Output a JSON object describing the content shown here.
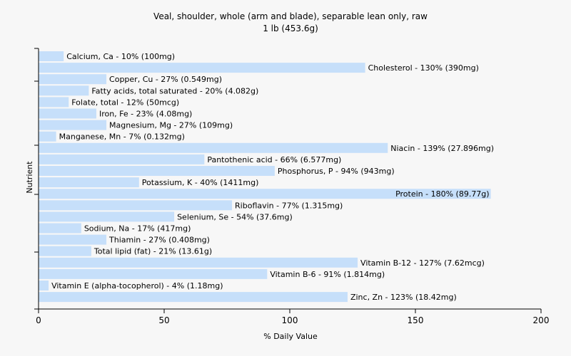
{
  "chart_data": {
    "type": "bar",
    "orientation": "horizontal",
    "title": "Veal, shoulder, whole (arm and blade), separable lean only, raw",
    "subtitle": "1 lb (453.6g)",
    "xlabel": "% Daily Value",
    "ylabel": "Nutrient",
    "xlim": [
      0,
      200
    ],
    "xticks": [
      "0",
      "50",
      "100",
      "150",
      "200"
    ],
    "grid": false,
    "bar_color": "#c6dffa",
    "categories": [
      "Calcium, Ca",
      "Cholesterol",
      "Copper, Cu",
      "Fatty acids, total saturated",
      "Folate, total",
      "Iron, Fe",
      "Magnesium, Mg",
      "Manganese, Mn",
      "Niacin",
      "Pantothenic acid",
      "Phosphorus, P",
      "Potassium, K",
      "Protein",
      "Riboflavin",
      "Selenium, Se",
      "Sodium, Na",
      "Thiamin",
      "Total lipid (fat)",
      "Vitamin B-12",
      "Vitamin B-6",
      "Vitamin E (alpha-tocopherol)",
      "Zinc, Zn"
    ],
    "values": [
      10,
      130,
      27,
      20,
      12,
      23,
      27,
      7,
      139,
      66,
      94,
      40,
      180,
      77,
      54,
      17,
      27,
      21,
      127,
      91,
      4,
      123
    ],
    "labels": [
      "Calcium, Ca - 10% (100mg)",
      "Cholesterol - 130% (390mg)",
      "Copper, Cu - 27% (0.549mg)",
      "Fatty acids, total saturated - 20% (4.082g)",
      "Folate, total - 12% (50mcg)",
      "Iron, Fe - 23% (4.08mg)",
      "Magnesium, Mg - 27% (109mg)",
      "Manganese, Mn - 7% (0.132mg)",
      "Niacin - 139% (27.896mg)",
      "Pantothenic acid - 66% (6.577mg)",
      "Phosphorus, P - 94% (943mg)",
      "Potassium, K - 40% (1411mg)",
      "Protein - 180% (89.77g)",
      "Riboflavin - 77% (1.315mg)",
      "Selenium, Se - 54% (37.6mg)",
      "Sodium, Na - 17% (417mg)",
      "Thiamin - 27% (0.408mg)",
      "Total lipid (fat) - 21% (13.61g)",
      "Vitamin B-12 - 127% (7.62mcg)",
      "Vitamin B-6 - 91% (1.814mg)",
      "Vitamin E (alpha-tocopherol) - 4% (1.18mg)",
      "Zinc, Zn - 123% (18.42mg)"
    ]
  }
}
